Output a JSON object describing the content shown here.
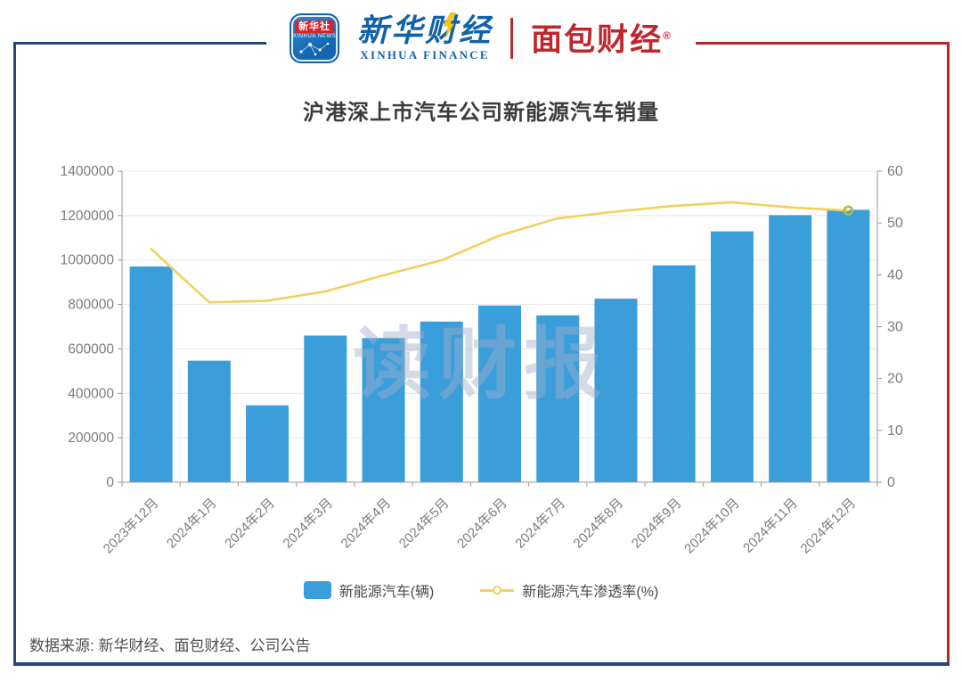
{
  "header": {
    "xinhua_app": {
      "line1": "新华社",
      "line2": "XINHUA NEWS"
    },
    "xinhua_finance": {
      "cn": "新华财经",
      "en": "XINHUA FINANCE"
    },
    "mianbao": {
      "cn": "面包财经",
      "reg": "®"
    }
  },
  "chart_data": {
    "type": "bar+line",
    "title": "沪港深上市汽车公司新能源汽车销量",
    "categories": [
      "2023年12月",
      "2024年1月",
      "2024年2月",
      "2024年3月",
      "2024年4月",
      "2024年5月",
      "2024年6月",
      "2024年7月",
      "2024年8月",
      "2024年9月",
      "2024年10月",
      "2024年11月",
      "2024年12月"
    ],
    "series": [
      {
        "name": "新能源汽车(辆)",
        "type": "bar",
        "axis": "left",
        "color": "#3a9edb",
        "values": [
          971000,
          547000,
          346000,
          660000,
          649000,
          723000,
          795000,
          751000,
          826000,
          976000,
          1129000,
          1202000,
          1226000
        ]
      },
      {
        "name": "新能源汽车渗透率(%)",
        "type": "line",
        "axis": "right",
        "color": "#f2d160",
        "values": [
          45,
          34.7,
          35,
          36.8,
          39.9,
          42.8,
          47.6,
          50.9,
          52.2,
          53.3,
          54,
          53,
          52.4
        ]
      }
    ],
    "left_axis": {
      "min": 0,
      "max": 1400000,
      "ticks": [
        0,
        200000,
        400000,
        600000,
        800000,
        1000000,
        1200000,
        1400000
      ]
    },
    "right_axis": {
      "min": 0,
      "max": 60,
      "ticks": [
        0,
        10,
        20,
        30,
        40,
        50,
        60
      ]
    },
    "grid": true,
    "legend_position": "bottom",
    "x_label_rotation": -45
  },
  "watermark": "读财报",
  "footer": {
    "source": "数据来源: 新华财经、面包财经、公司公告"
  },
  "colors": {
    "frame_navy": "#24477b",
    "frame_red": "#b5292e",
    "bar_blue": "#3a9edb",
    "line_yellow": "#f2d160",
    "line_end_marker": "#a9c23f",
    "axis_line": "#9a9a9a",
    "grid_line": "#e7e7e7",
    "axis_text": "#7d7d7d",
    "title_text": "#3c3c3c"
  }
}
